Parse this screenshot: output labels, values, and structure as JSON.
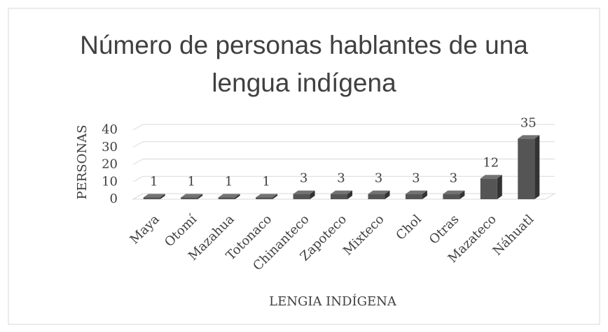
{
  "chart_data": {
    "type": "bar3d",
    "title": "Número de personas hablantes de una lengua indígena",
    "x_label": "LENGIA INDÍGENA",
    "y_label": "PERSONAS",
    "categories": [
      "Maya",
      "Otomí",
      "Mazahua",
      "Totonaco",
      "Chinanteco",
      "Zapoteco",
      "Mixteco",
      "Chol",
      "Otras",
      "Mazateco",
      "Náhuatl"
    ],
    "values": [
      1,
      1,
      1,
      1,
      3,
      3,
      3,
      3,
      3,
      12,
      35
    ],
    "color": "#555555",
    "ylim": [
      0,
      40
    ],
    "yticks": [
      0,
      10,
      20,
      30,
      40
    ],
    "grid": true
  }
}
